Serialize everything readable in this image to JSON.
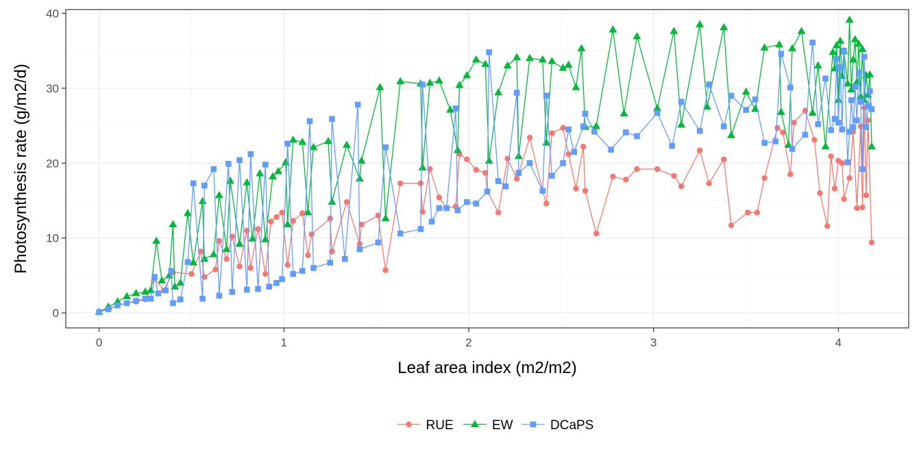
{
  "chart_data": {
    "type": "line",
    "xlabel": "Leaf area index (m2/m2)",
    "ylabel": "Photosynthesis rate (g/m2/d)",
    "xlim": [
      -0.18,
      4.38
    ],
    "ylim": [
      -2,
      40.5
    ],
    "x_ticks": [
      "0",
      "1",
      "2",
      "3",
      "4"
    ],
    "y_ticks": [
      "0",
      "10",
      "20",
      "30",
      "40"
    ],
    "grid": true,
    "legend_position": "bottom",
    "series": [
      {
        "name": "RUE",
        "marker": "circle",
        "color": "#F8766D",
        "points": [
          [
            0,
            0.1
          ],
          [
            0.05,
            0.6
          ],
          [
            0.1,
            1.0
          ],
          [
            0.15,
            1.3
          ],
          [
            0.2,
            1.5
          ],
          [
            0.25,
            1.8
          ],
          [
            0.3,
            4.6
          ],
          [
            0.35,
            3.0
          ],
          [
            0.4,
            5.4
          ],
          [
            0.5,
            5.2
          ],
          [
            0.55,
            8.2
          ],
          [
            0.57,
            4.8
          ],
          [
            0.63,
            5.8
          ],
          [
            0.65,
            9.6
          ],
          [
            0.69,
            7.2
          ],
          [
            0.72,
            10.2
          ],
          [
            0.76,
            6.2
          ],
          [
            0.8,
            11.0
          ],
          [
            0.82,
            6.0
          ],
          [
            0.86,
            11.2
          ],
          [
            0.9,
            5.2
          ],
          [
            0.93,
            12.2
          ],
          [
            0.96,
            12.8
          ],
          [
            0.99,
            13.4
          ],
          [
            1.02,
            6.4
          ],
          [
            1.05,
            12.3
          ],
          [
            1.1,
            13.3
          ],
          [
            1.13,
            7.7
          ],
          [
            1.15,
            10.5
          ],
          [
            1.25,
            12.6
          ],
          [
            1.26,
            8.2
          ],
          [
            1.34,
            14.8
          ],
          [
            1.41,
            9.2
          ],
          [
            1.42,
            11.8
          ],
          [
            1.51,
            13.0
          ],
          [
            1.55,
            5.7
          ],
          [
            1.63,
            17.3
          ],
          [
            1.74,
            17.3
          ],
          [
            1.75,
            13.5
          ],
          [
            1.79,
            19.2
          ],
          [
            1.84,
            15.4
          ],
          [
            1.88,
            14.0
          ],
          [
            1.93,
            14.2
          ],
          [
            1.95,
            21.2
          ],
          [
            1.99,
            20.5
          ],
          [
            2.04,
            19.1
          ],
          [
            2.09,
            18.7
          ],
          [
            2.1,
            16.3
          ],
          [
            2.16,
            13.4
          ],
          [
            2.21,
            20.6
          ],
          [
            2.26,
            17.9
          ],
          [
            2.27,
            18.6
          ],
          [
            2.33,
            23.4
          ],
          [
            2.4,
            16.3
          ],
          [
            2.42,
            14.6
          ],
          [
            2.45,
            24.0
          ],
          [
            2.51,
            24.7
          ],
          [
            2.54,
            21.2
          ],
          [
            2.58,
            16.6
          ],
          [
            2.62,
            22.2
          ],
          [
            2.63,
            16.3
          ],
          [
            2.69,
            10.6
          ],
          [
            2.78,
            18.2
          ],
          [
            2.85,
            17.8
          ],
          [
            2.91,
            19.2
          ],
          [
            3.02,
            19.2
          ],
          [
            3.11,
            18.3
          ],
          [
            3.15,
            16.9
          ],
          [
            3.25,
            21.7
          ],
          [
            3.3,
            17.3
          ],
          [
            3.38,
            20.5
          ],
          [
            3.42,
            11.7
          ],
          [
            3.51,
            13.4
          ],
          [
            3.56,
            13.4
          ],
          [
            3.6,
            18.0
          ],
          [
            3.67,
            24.7
          ],
          [
            3.7,
            24.1
          ],
          [
            3.74,
            18.5
          ],
          [
            3.76,
            25.4
          ],
          [
            3.82,
            27.0
          ],
          [
            3.87,
            23.1
          ],
          [
            3.9,
            16.0
          ],
          [
            3.94,
            11.6
          ],
          [
            3.96,
            20.9
          ],
          [
            3.98,
            16.6
          ],
          [
            4.0,
            20.3
          ],
          [
            4.02,
            20.0
          ],
          [
            4.03,
            15.2
          ],
          [
            4.06,
            18.0
          ],
          [
            4.08,
            24.2
          ],
          [
            4.1,
            14.0
          ],
          [
            4.12,
            24.9
          ],
          [
            4.13,
            14.1
          ],
          [
            4.14,
            27.4
          ],
          [
            4.15,
            15.7
          ],
          [
            4.16,
            25.7
          ],
          [
            4.18,
            9.4
          ]
        ]
      },
      {
        "name": "EW",
        "marker": "triangle",
        "color": "#00BA38",
        "points": [
          [
            0,
            0.1
          ],
          [
            0.05,
            0.8
          ],
          [
            0.1,
            1.5
          ],
          [
            0.15,
            2.2
          ],
          [
            0.2,
            2.6
          ],
          [
            0.25,
            2.8
          ],
          [
            0.28,
            3.0
          ],
          [
            0.31,
            9.6
          ],
          [
            0.34,
            4.3
          ],
          [
            0.38,
            5.0
          ],
          [
            0.4,
            11.8
          ],
          [
            0.41,
            3.5
          ],
          [
            0.44,
            4.0
          ],
          [
            0.48,
            13.3
          ],
          [
            0.51,
            6.7
          ],
          [
            0.56,
            14.9
          ],
          [
            0.57,
            7.2
          ],
          [
            0.62,
            7.8
          ],
          [
            0.65,
            15.7
          ],
          [
            0.69,
            8.5
          ],
          [
            0.71,
            17.6
          ],
          [
            0.76,
            9.2
          ],
          [
            0.8,
            17.4
          ],
          [
            0.83,
            9.9
          ],
          [
            0.87,
            18.6
          ],
          [
            0.9,
            9.8
          ],
          [
            0.94,
            18.2
          ],
          [
            0.97,
            18.9
          ],
          [
            1.01,
            20.1
          ],
          [
            1.02,
            11.8
          ],
          [
            1.05,
            23.1
          ],
          [
            1.1,
            22.8
          ],
          [
            1.13,
            13.4
          ],
          [
            1.16,
            22.1
          ],
          [
            1.24,
            22.9
          ],
          [
            1.26,
            14.8
          ],
          [
            1.34,
            22.4
          ],
          [
            1.41,
            17.9
          ],
          [
            1.42,
            20.3
          ],
          [
            1.52,
            30.1
          ],
          [
            1.55,
            12.6
          ],
          [
            1.63,
            30.9
          ],
          [
            1.74,
            30.6
          ],
          [
            1.75,
            19.4
          ],
          [
            1.79,
            30.7
          ],
          [
            1.84,
            31.0
          ],
          [
            1.9,
            27.1
          ],
          [
            1.94,
            21.7
          ],
          [
            1.95,
            30.4
          ],
          [
            1.99,
            31.7
          ],
          [
            2.04,
            33.8
          ],
          [
            2.09,
            33.2
          ],
          [
            2.11,
            20.3
          ],
          [
            2.16,
            29.4
          ],
          [
            2.21,
            33.0
          ],
          [
            2.26,
            34.1
          ],
          [
            2.27,
            20.9
          ],
          [
            2.33,
            34.0
          ],
          [
            2.4,
            33.8
          ],
          [
            2.42,
            22.7
          ],
          [
            2.45,
            33.6
          ],
          [
            2.51,
            32.7
          ],
          [
            2.54,
            33.1
          ],
          [
            2.58,
            30.1
          ],
          [
            2.61,
            35.3
          ],
          [
            2.63,
            24.8
          ],
          [
            2.69,
            24.9
          ],
          [
            2.78,
            37.8
          ],
          [
            2.84,
            26.6
          ],
          [
            2.91,
            36.9
          ],
          [
            3.02,
            27.3
          ],
          [
            3.11,
            37.6
          ],
          [
            3.15,
            25.1
          ],
          [
            3.25,
            38.5
          ],
          [
            3.29,
            27.5
          ],
          [
            3.38,
            38.1
          ],
          [
            3.42,
            23.7
          ],
          [
            3.5,
            29.5
          ],
          [
            3.55,
            27.2
          ],
          [
            3.6,
            35.4
          ],
          [
            3.68,
            35.8
          ],
          [
            3.69,
            26.8
          ],
          [
            3.73,
            22.4
          ],
          [
            3.75,
            35.3
          ],
          [
            3.8,
            37.6
          ],
          [
            3.86,
            26.7
          ],
          [
            3.89,
            33.0
          ],
          [
            3.93,
            22.2
          ],
          [
            3.97,
            34.8
          ],
          [
            3.98,
            32.6
          ],
          [
            3.99,
            35.7
          ],
          [
            4.0,
            28.4
          ],
          [
            4.01,
            36.3
          ],
          [
            4.02,
            31.6
          ],
          [
            4.03,
            34.9
          ],
          [
            4.05,
            30.6
          ],
          [
            4.06,
            39.1
          ],
          [
            4.07,
            29.8
          ],
          [
            4.08,
            33.8
          ],
          [
            4.09,
            36.5
          ],
          [
            4.1,
            30.8
          ],
          [
            4.11,
            35.9
          ],
          [
            4.12,
            28.9
          ],
          [
            4.13,
            35.2
          ],
          [
            4.14,
            28.4
          ],
          [
            4.15,
            31.7
          ],
          [
            4.16,
            29.1
          ],
          [
            4.17,
            31.8
          ],
          [
            4.18,
            22.2
          ]
        ]
      },
      {
        "name": "DCaPS",
        "marker": "square",
        "color": "#619CFF",
        "points": [
          [
            0,
            0.1
          ],
          [
            0.05,
            0.5
          ],
          [
            0.1,
            1.0
          ],
          [
            0.15,
            1.3
          ],
          [
            0.2,
            1.6
          ],
          [
            0.25,
            1.9
          ],
          [
            0.28,
            1.9
          ],
          [
            0.3,
            4.8
          ],
          [
            0.32,
            2.6
          ],
          [
            0.36,
            3.0
          ],
          [
            0.39,
            5.6
          ],
          [
            0.4,
            1.3
          ],
          [
            0.44,
            1.8
          ],
          [
            0.48,
            6.8
          ],
          [
            0.51,
            17.3
          ],
          [
            0.56,
            1.9
          ],
          [
            0.57,
            17.0
          ],
          [
            0.62,
            19.2
          ],
          [
            0.65,
            2.3
          ],
          [
            0.7,
            19.9
          ],
          [
            0.72,
            2.8
          ],
          [
            0.76,
            20.4
          ],
          [
            0.8,
            3.1
          ],
          [
            0.82,
            21.2
          ],
          [
            0.86,
            3.2
          ],
          [
            0.9,
            19.8
          ],
          [
            0.92,
            3.5
          ],
          [
            0.96,
            4.0
          ],
          [
            0.99,
            4.5
          ],
          [
            1.02,
            22.6
          ],
          [
            1.05,
            5.2
          ],
          [
            1.1,
            5.6
          ],
          [
            1.14,
            25.6
          ],
          [
            1.16,
            6.0
          ],
          [
            1.25,
            6.7
          ],
          [
            1.26,
            25.9
          ],
          [
            1.33,
            7.2
          ],
          [
            1.4,
            27.8
          ],
          [
            1.41,
            8.5
          ],
          [
            1.51,
            9.4
          ],
          [
            1.55,
            22.1
          ],
          [
            1.63,
            10.6
          ],
          [
            1.74,
            11.2
          ],
          [
            1.75,
            30.5
          ],
          [
            1.8,
            12.2
          ],
          [
            1.84,
            14.0
          ],
          [
            1.88,
            14.0
          ],
          [
            1.93,
            27.3
          ],
          [
            1.94,
            13.7
          ],
          [
            1.99,
            14.8
          ],
          [
            2.04,
            14.6
          ],
          [
            2.1,
            16.2
          ],
          [
            2.11,
            34.8
          ],
          [
            2.16,
            17.6
          ],
          [
            2.2,
            16.9
          ],
          [
            2.26,
            29.4
          ],
          [
            2.27,
            18.7
          ],
          [
            2.33,
            20.0
          ],
          [
            2.4,
            16.3
          ],
          [
            2.42,
            29.0
          ],
          [
            2.45,
            18.3
          ],
          [
            2.51,
            20.0
          ],
          [
            2.54,
            24.5
          ],
          [
            2.57,
            21.5
          ],
          [
            2.62,
            24.9
          ],
          [
            2.63,
            26.6
          ],
          [
            2.68,
            24.2
          ],
          [
            2.77,
            21.8
          ],
          [
            2.85,
            24.1
          ],
          [
            2.91,
            23.6
          ],
          [
            3.02,
            26.7
          ],
          [
            3.1,
            22.3
          ],
          [
            3.15,
            28.2
          ],
          [
            3.25,
            24.3
          ],
          [
            3.3,
            30.5
          ],
          [
            3.38,
            24.9
          ],
          [
            3.42,
            29.0
          ],
          [
            3.5,
            27.1
          ],
          [
            3.55,
            28.5
          ],
          [
            3.6,
            22.7
          ],
          [
            3.66,
            22.9
          ],
          [
            3.69,
            34.6
          ],
          [
            3.74,
            30.1
          ],
          [
            3.75,
            21.9
          ],
          [
            3.82,
            23.8
          ],
          [
            3.86,
            36.1
          ],
          [
            3.89,
            25.2
          ],
          [
            3.93,
            31.3
          ],
          [
            3.96,
            24.4
          ],
          [
            3.98,
            25.9
          ],
          [
            3.99,
            33.9
          ],
          [
            4.0,
            25.4
          ],
          [
            4.01,
            32.8
          ],
          [
            4.02,
            24.5
          ],
          [
            4.03,
            35.0
          ],
          [
            4.05,
            20.1
          ],
          [
            4.06,
            24.2
          ],
          [
            4.07,
            28.4
          ],
          [
            4.08,
            24.8
          ],
          [
            4.09,
            30.2
          ],
          [
            4.1,
            25.7
          ],
          [
            4.11,
            32.1
          ],
          [
            4.12,
            28.2
          ],
          [
            4.13,
            19.2
          ],
          [
            4.14,
            34.2
          ],
          [
            4.15,
            24.8
          ],
          [
            4.16,
            27.6
          ],
          [
            4.17,
            29.6
          ],
          [
            4.18,
            27.2
          ]
        ]
      }
    ]
  }
}
